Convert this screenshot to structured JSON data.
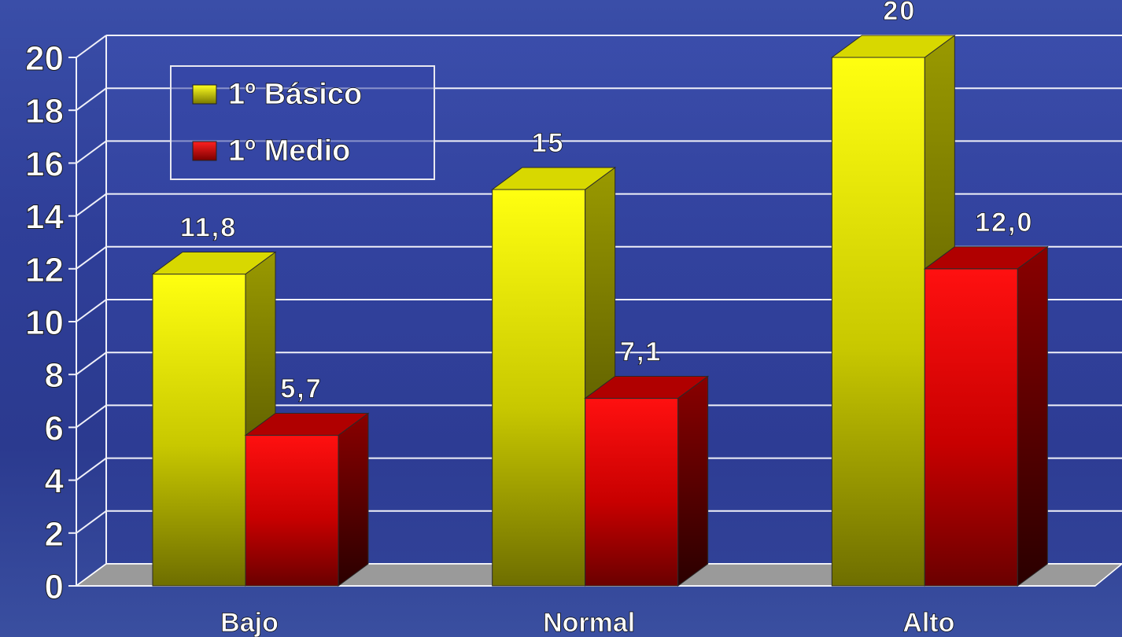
{
  "chart_data": {
    "type": "bar",
    "categories": [
      "Bajo",
      "Normal",
      "Alto"
    ],
    "series": [
      {
        "name": "1º Básico",
        "values": [
          11.8,
          15,
          20
        ],
        "labels": [
          "11,8",
          "15",
          "20"
        ],
        "color": "#ffff00"
      },
      {
        "name": "1º Medio",
        "values": [
          5.7,
          7.1,
          12.0
        ],
        "labels": [
          "5,7",
          "7,1",
          "12,0"
        ],
        "color": "#ff0000"
      }
    ],
    "y_ticks": [
      "0",
      "2",
      "4",
      "6",
      "8",
      "10",
      "12",
      "14",
      "16",
      "18",
      "20"
    ],
    "ylim": [
      0,
      20
    ],
    "grid": true,
    "legend_position": "top-left",
    "style": "3d-bars"
  }
}
